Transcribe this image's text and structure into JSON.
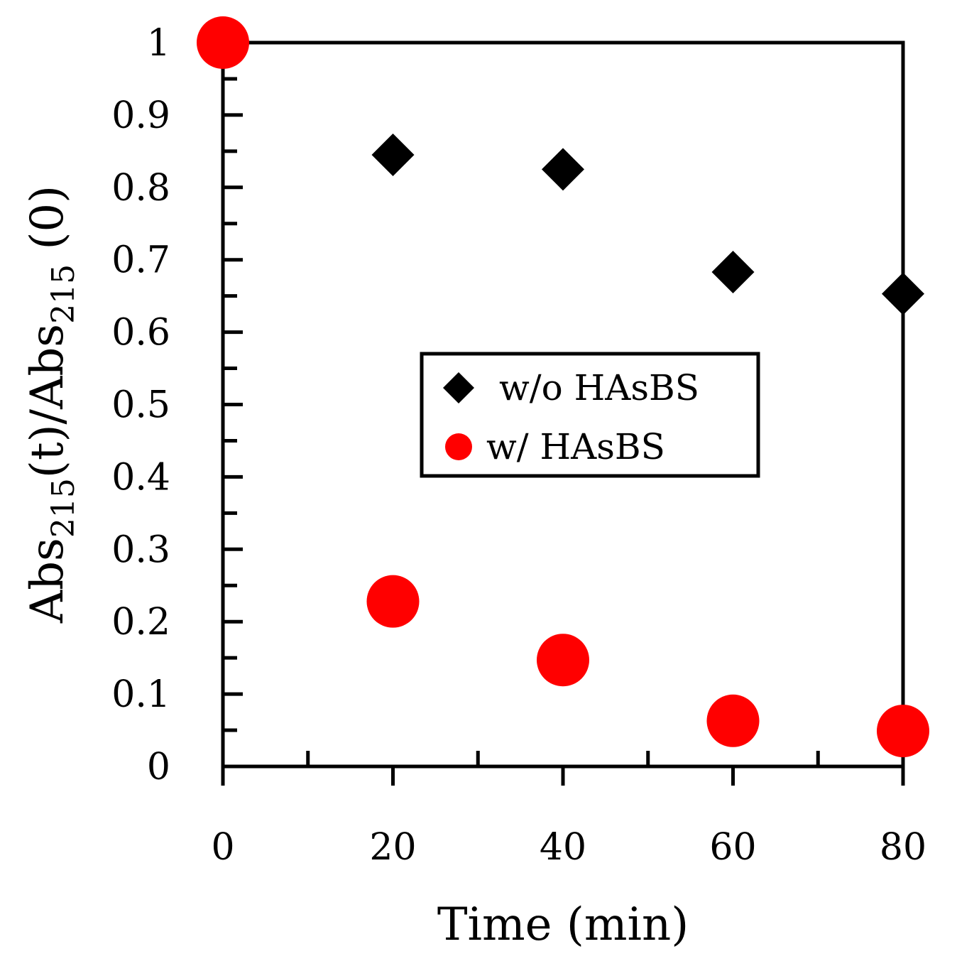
{
  "chart_data": {
    "type": "scatter",
    "title": "",
    "xlabel": "Time (min)",
    "ylabel": {
      "parts": [
        {
          "text": "Abs",
          "sub": false
        },
        {
          "text": "215",
          "sub": true
        },
        {
          "text": "(t)/Abs",
          "sub": false
        },
        {
          "text": "215",
          "sub": true
        },
        {
          "text": " (0)",
          "sub": false
        }
      ]
    },
    "xlim": [
      0,
      80
    ],
    "ylim": [
      0,
      1
    ],
    "x_ticks": [
      0,
      20,
      40,
      60,
      80
    ],
    "x_tick_labels": [
      "0",
      "20",
      "40",
      "60",
      "80"
    ],
    "x_minor_step": 10,
    "y_ticks": [
      0,
      0.1,
      0.2,
      0.3,
      0.4,
      0.5,
      0.6,
      0.7,
      0.8,
      0.9,
      1
    ],
    "y_tick_labels": [
      "0",
      "0.1",
      "0.2",
      "0.3",
      "0.4",
      "0.5",
      "0.6",
      "0.7",
      "0.8",
      "0.9",
      "1"
    ],
    "y_minor_step": 0.05,
    "grid": false,
    "legend_position": "center",
    "series": [
      {
        "name": "w/o HAsBS",
        "marker": "diamond",
        "color": "#000000",
        "x": [
          20,
          40,
          60,
          80
        ],
        "y": [
          0.845,
          0.825,
          0.683,
          0.653
        ]
      },
      {
        "name": "w/ HAsBS",
        "marker": "circle",
        "color": "#ff0000",
        "x": [
          0,
          20,
          40,
          60,
          80
        ],
        "y": [
          1.0,
          0.228,
          0.147,
          0.063,
          0.049
        ]
      }
    ]
  }
}
